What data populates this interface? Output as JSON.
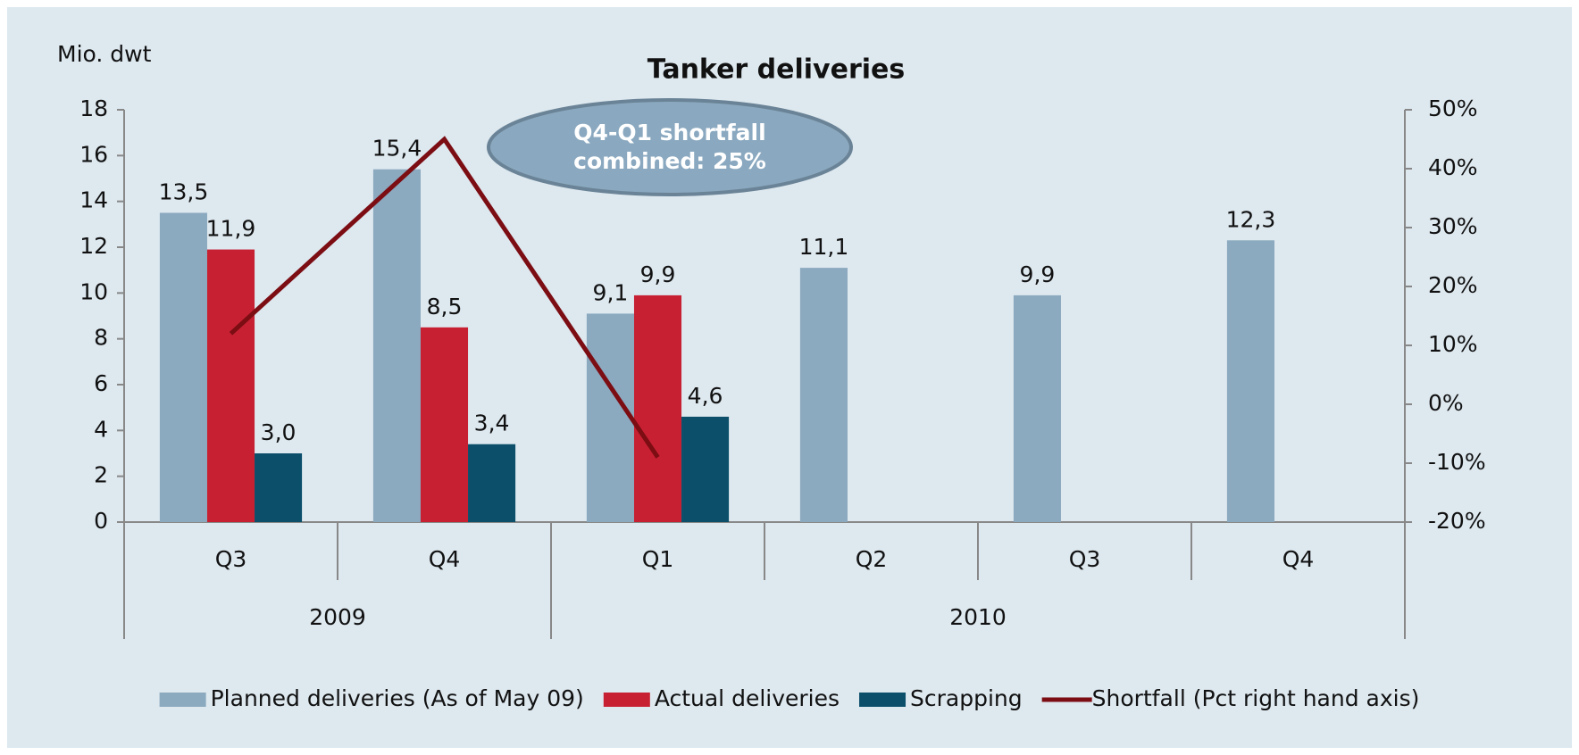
{
  "chart_data": {
    "type": "bar",
    "title": "Tanker deliveries",
    "y_axis_label": "Mio. dwt",
    "categories": [
      "Q3",
      "Q4",
      "Q1",
      "Q2",
      "Q3",
      "Q4"
    ],
    "x_groups": [
      {
        "label": "2009",
        "span": 2
      },
      {
        "label": "2010",
        "span": 4
      }
    ],
    "series": [
      {
        "name": "Planned deliveries (As of May 09)",
        "color": "#8ba9bf",
        "values": [
          13.5,
          15.4,
          9.1,
          11.1,
          9.9,
          12.3
        ],
        "value_labels": [
          "13,5",
          "15,4",
          "9,1",
          "11,1",
          "9,9",
          "12,3"
        ]
      },
      {
        "name": "Actual deliveries",
        "color": "#c82033",
        "values": [
          11.9,
          8.5,
          9.9,
          null,
          null,
          null
        ],
        "value_labels": [
          "11,9",
          "8,5",
          "9,9",
          null,
          null,
          null
        ]
      },
      {
        "name": "Scrapping",
        "color": "#0b4f6a",
        "values": [
          3.0,
          3.4,
          4.6,
          null,
          null,
          null
        ],
        "value_labels": [
          "3,0",
          "3,4",
          "4,6",
          null,
          null,
          null
        ]
      },
      {
        "name": "Shortfall (Pct right hand axis)",
        "color": "#7b0d13",
        "type": "line",
        "axis": "y2",
        "values": [
          12,
          45,
          -9,
          null,
          null,
          null
        ]
      }
    ],
    "ylim": [
      0,
      18
    ],
    "yticks": [
      0,
      2,
      4,
      6,
      8,
      10,
      12,
      14,
      16,
      18
    ],
    "y2lim": [
      -20,
      50
    ],
    "y2ticks": [
      {
        "value": -20,
        "label": "-20%"
      },
      {
        "value": -10,
        "label": "-10%"
      },
      {
        "value": 0,
        "label": "0%"
      },
      {
        "value": 10,
        "label": "10%"
      },
      {
        "value": 20,
        "label": "20%"
      },
      {
        "value": 30,
        "label": "30%"
      },
      {
        "value": 40,
        "label": "40%"
      },
      {
        "value": 50,
        "label": "50%"
      }
    ],
    "annotation": {
      "lines": [
        "Q4-Q1 shortfall",
        "combined: 25%"
      ]
    },
    "legend": "bottom"
  }
}
